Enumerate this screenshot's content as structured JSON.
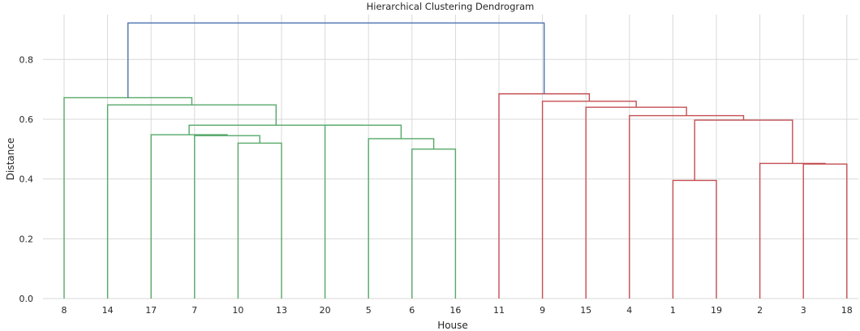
{
  "chart_data": {
    "type": "dendrogram",
    "title": "Hierarchical Clustering Dendrogram",
    "xlabel": "House",
    "ylabel": "Distance",
    "ylim": [
      0,
      0.95
    ],
    "yticks": [
      0.0,
      0.2,
      0.4,
      0.6,
      0.8
    ],
    "ytick_labels": [
      "0.0",
      "0.2",
      "0.4",
      "0.6",
      "0.8"
    ],
    "grid": true,
    "leaves": [
      "8",
      "14",
      "17",
      "7",
      "10",
      "13",
      "20",
      "5",
      "6",
      "16",
      "11",
      "9",
      "15",
      "4",
      "1",
      "19",
      "2",
      "3",
      "18"
    ],
    "colors": {
      "cluster_1": "#55a868",
      "cluster_2": "#c44e52",
      "above_threshold": "#4c72b0"
    },
    "merges": [
      {
        "left": "6",
        "right": "16",
        "distance": 0.5,
        "color": "cluster_1"
      },
      {
        "left": "5",
        "right": "6+16",
        "distance": 0.535,
        "color": "cluster_1"
      },
      {
        "left": "10",
        "right": "13",
        "distance": 0.52,
        "color": "cluster_1"
      },
      {
        "left": "7",
        "right": "10+13",
        "distance": 0.545,
        "color": "cluster_1"
      },
      {
        "left": "17",
        "right": "7+10+13",
        "distance": 0.548,
        "color": "cluster_1"
      },
      {
        "left": "20",
        "right": "5+6+16",
        "distance": 0.58,
        "color": "cluster_1"
      },
      {
        "left": "17+7+10+13",
        "right": "20+5+6+16",
        "distance": 0.58,
        "color": "cluster_1"
      },
      {
        "left": "14",
        "right": "17+7+10+13+20+5+6+16",
        "distance": 0.648,
        "color": "cluster_1"
      },
      {
        "left": "8",
        "right": "14+17+7+10+13+20+5+6+16",
        "distance": 0.672,
        "color": "cluster_1"
      },
      {
        "left": "1",
        "right": "19",
        "distance": 0.395,
        "color": "cluster_2"
      },
      {
        "left": "3",
        "right": "18",
        "distance": 0.45,
        "color": "cluster_2"
      },
      {
        "left": "2",
        "right": "3+18",
        "distance": 0.452,
        "color": "cluster_2"
      },
      {
        "left": "1+19",
        "right": "2+3+18",
        "distance": 0.597,
        "color": "cluster_2"
      },
      {
        "left": "4",
        "right": "1+19+2+3+18",
        "distance": 0.612,
        "color": "cluster_2"
      },
      {
        "left": "15",
        "right": "4+1+19+2+3+18",
        "distance": 0.64,
        "color": "cluster_2"
      },
      {
        "left": "9",
        "right": "15+4+1+19+2+3+18",
        "distance": 0.66,
        "color": "cluster_2"
      },
      {
        "left": "11",
        "right": "9+15+4+1+19+2+3+18",
        "distance": 0.685,
        "color": "cluster_2"
      },
      {
        "left": "8+14+17+7+10+13+20+5+6+16",
        "right": "11+9+15+4+1+19+2+3+18",
        "distance": 0.922,
        "color": "above_threshold"
      }
    ]
  }
}
